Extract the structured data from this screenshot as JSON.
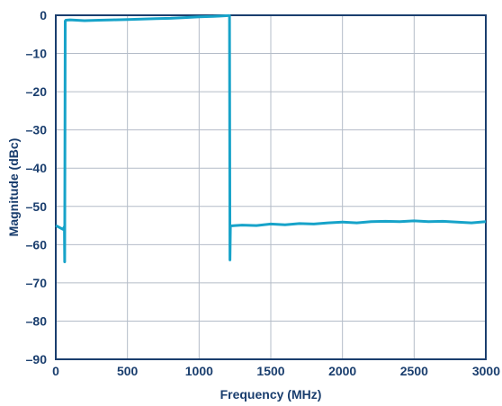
{
  "chart_data": {
    "type": "line",
    "title": "",
    "xlabel": "Frequency (MHz)",
    "ylabel": "Magnitude (dBc)",
    "xlim": [
      0,
      3000
    ],
    "ylim": [
      -90,
      0
    ],
    "x_ticks": [
      0,
      500,
      1000,
      1500,
      2000,
      2500,
      3000
    ],
    "y_ticks": [
      0,
      -10,
      -20,
      -30,
      -40,
      -50,
      -60,
      -70,
      -80,
      -90
    ],
    "y_tick_labels": [
      "0",
      "–10",
      "–20",
      "–30",
      "–40",
      "–50",
      "–60",
      "–70",
      "–80",
      "–90"
    ],
    "grid": true,
    "legend": "none",
    "line_color": "#17a3c9",
    "text_color": "#1a3e6e",
    "series": [
      {
        "x": [
          0,
          25,
          50,
          60,
          62,
          66,
          70,
          100,
          200,
          300,
          400,
          500,
          600,
          700,
          800,
          900,
          1000,
          1100,
          1150,
          1200,
          1212,
          1215,
          1218,
          1222,
          1250,
          1300,
          1400,
          1500,
          1600,
          1700,
          1800,
          1900,
          2000,
          2100,
          2200,
          2300,
          2400,
          2500,
          2600,
          2700,
          2800,
          2900,
          3000
        ],
        "y": [
          -55,
          -55.5,
          -56,
          -55.3,
          -64.5,
          -1.5,
          -1.3,
          -1.2,
          -1.4,
          -1.3,
          -1.2,
          -1.1,
          -1.0,
          -0.9,
          -0.8,
          -0.6,
          -0.4,
          -0.3,
          -0.2,
          -0.1,
          -0.1,
          -64,
          -55.3,
          -55.1,
          -55,
          -54.9,
          -55,
          -54.6,
          -54.8,
          -54.5,
          -54.6,
          -54.3,
          -54.1,
          -54.3,
          -54.0,
          -53.9,
          -54.0,
          -53.8,
          -54.0,
          -53.9,
          -54.1,
          -54.3,
          -54.0
        ]
      }
    ]
  }
}
